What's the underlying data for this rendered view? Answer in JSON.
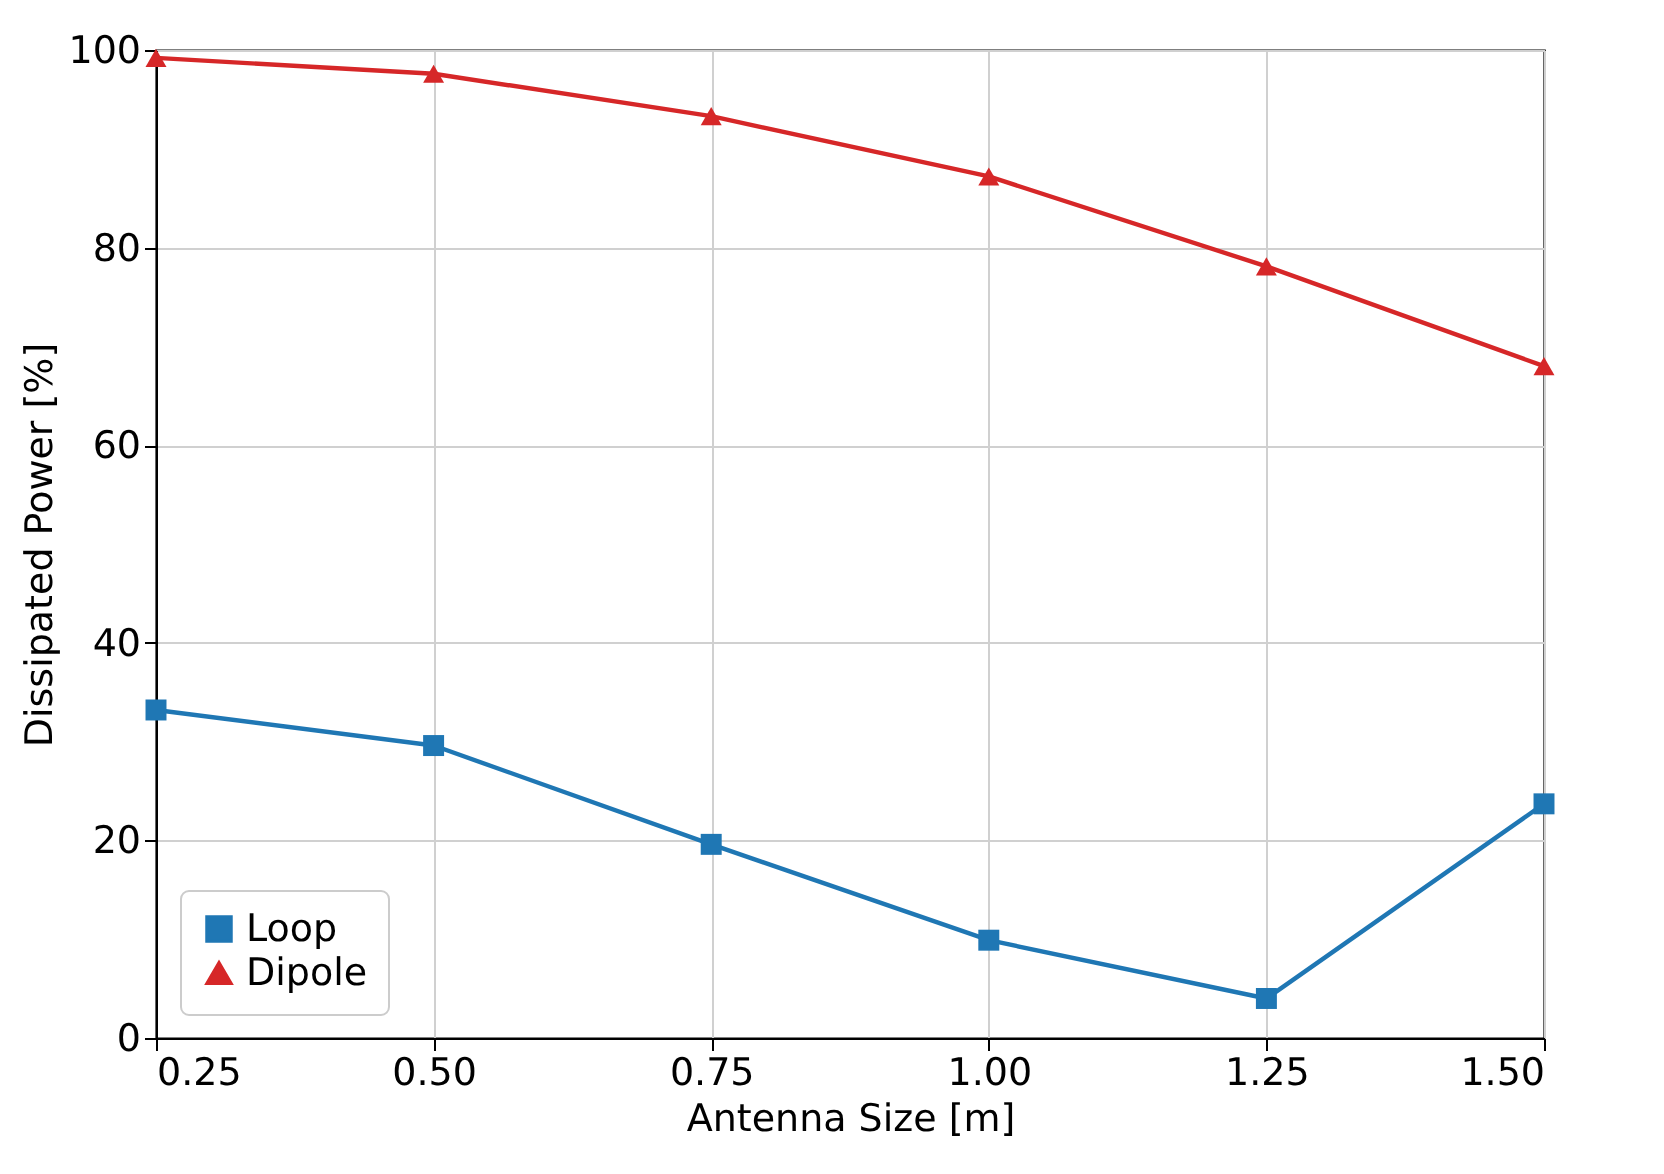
{
  "chart_data": {
    "type": "line",
    "xlabel": "Antenna Size [m]",
    "ylabel": "Dissipated Power [%]",
    "x": [
      0.25,
      0.5,
      0.75,
      1.0,
      1.25,
      1.5
    ],
    "series": [
      {
        "name": "Loop",
        "color": "#1f77b4",
        "marker": "square",
        "values": [
          33.2,
          29.6,
          19.6,
          9.9,
          4.0,
          23.7
        ]
      },
      {
        "name": "Dipole",
        "color": "#d62728",
        "marker": "triangle",
        "values": [
          99.2,
          97.6,
          93.3,
          87.2,
          78.1,
          68.0
        ]
      }
    ],
    "xlim": [
      0.25,
      1.5
    ],
    "xticks": [
      {
        "value": 0.25,
        "label": "0.25"
      },
      {
        "value": 0.5,
        "label": "0.50"
      },
      {
        "value": 0.75,
        "label": "0.75"
      },
      {
        "value": 1.0,
        "label": "1.00"
      },
      {
        "value": 1.25,
        "label": "1.25"
      },
      {
        "value": 1.5,
        "label": "1.50"
      }
    ],
    "ylim": [
      0,
      100
    ],
    "yticks": [
      0,
      20,
      40,
      60,
      80,
      100
    ],
    "grid": true,
    "legend": "bottom left",
    "line_style": "solid"
  }
}
